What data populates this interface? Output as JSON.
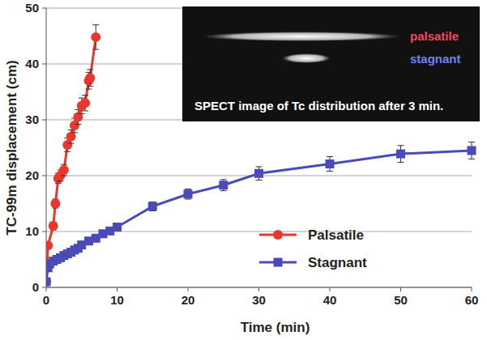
{
  "chart_data": {
    "type": "line",
    "x_label": "Time (min)",
    "y_label": "TC-99m displacement (cm)",
    "xlim": [
      0,
      60
    ],
    "xticks": [
      0,
      10,
      20,
      30,
      40,
      50,
      60
    ],
    "ylim": [
      0,
      50
    ],
    "yticks": [
      0,
      10,
      20,
      30,
      40,
      50
    ],
    "grid": true,
    "legend": "lower right",
    "annotations": [
      "palsatile",
      "stagnant",
      "SPECT image of Tc distribution after 3 min."
    ],
    "series": [
      {
        "name": "Palsatile",
        "color": "#e8372b",
        "marker": "circle",
        "x": [
          0,
          0.25,
          1,
          1.3,
          1.7,
          2,
          2.5,
          3,
          3.5,
          4,
          4.5,
          5,
          5.5,
          6,
          6.2,
          7
        ],
        "values": [
          1,
          7.5,
          11,
          15,
          19.5,
          20,
          21,
          25.5,
          27,
          29,
          30.5,
          32.5,
          33,
          37,
          37.5,
          44.8
        ],
        "errors": [
          0.3,
          0.6,
          0.7,
          0.8,
          0.9,
          1,
          1,
          1.2,
          1.2,
          1.3,
          1.3,
          1.4,
          1.4,
          1.5,
          1.5,
          2.2
        ]
      },
      {
        "name": "Stagnant",
        "color": "#4a4ab8",
        "marker": "square",
        "x": [
          0,
          0.25,
          0.5,
          1,
          1.5,
          2,
          2.5,
          3,
          3.5,
          4,
          4.5,
          5,
          6,
          7,
          8,
          9,
          10,
          15,
          20,
          25,
          30,
          40,
          50,
          60
        ],
        "values": [
          1,
          3.5,
          4.2,
          4.7,
          5,
          5.3,
          5.7,
          6,
          6.3,
          6.7,
          7,
          7.6,
          8.3,
          8.8,
          9.6,
          10.1,
          10.8,
          14.5,
          16.7,
          18.3,
          20.4,
          22.1,
          23.9,
          24.5
        ],
        "errors": [
          0.2,
          0.3,
          0.3,
          0.3,
          0.3,
          0.4,
          0.4,
          0.4,
          0.4,
          0.4,
          0.5,
          0.5,
          0.5,
          0.6,
          0.6,
          0.6,
          0.7,
          0.8,
          0.9,
          1,
          1.2,
          1.3,
          1.5,
          1.5
        ]
      }
    ]
  }
}
